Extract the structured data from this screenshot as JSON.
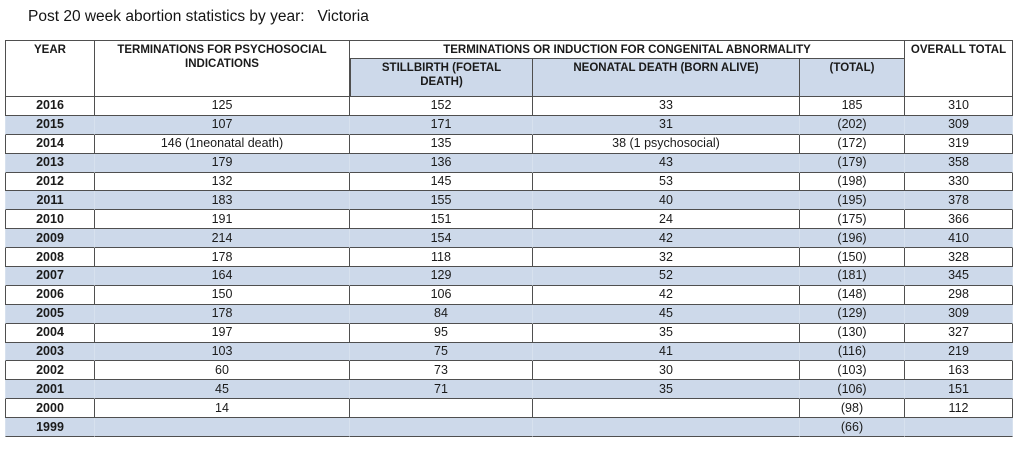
{
  "title": "Post 20 week abortion statistics by year:   Victoria",
  "table": {
    "headers": {
      "year": "YEAR",
      "psychosocial": "TERMINATIONS FOR PSYCHOSOCIAL INDICATIONS",
      "congenital_group": "TERMINATIONS OR INDUCTION FOR CONGENITAL ABNORMALITY",
      "stillbirth": "STILLBIRTH (FOETAL DEATH)",
      "neonatal": "NEONATAL DEATH (BORN ALIVE)",
      "total": "(TOTAL)",
      "overall": "OVERALL TOTAL"
    },
    "colors": {
      "stripe": "#cdd9ea",
      "border": "#4f4f4f",
      "text": "#1a1a1a"
    },
    "rows": [
      {
        "year": "2016",
        "psychosocial": "125",
        "stillbirth": "152",
        "neonatal": "33",
        "total": "185",
        "overall": "310"
      },
      {
        "year": "2015",
        "psychosocial": "107",
        "stillbirth": "171",
        "neonatal": "31",
        "total": "(202)",
        "overall": "309"
      },
      {
        "year": "2014",
        "psychosocial": "146 (1neonatal death)",
        "stillbirth": "135",
        "neonatal": "38 (1 psychosocial)",
        "total": "(172)",
        "overall": "319"
      },
      {
        "year": "2013",
        "psychosocial": "179",
        "stillbirth": "136",
        "neonatal": "43",
        "total": "(179)",
        "overall": "358"
      },
      {
        "year": "2012",
        "psychosocial": "132",
        "stillbirth": "145",
        "neonatal": "53",
        "total": "(198)",
        "overall": "330"
      },
      {
        "year": "2011",
        "psychosocial": "183",
        "stillbirth": "155",
        "neonatal": "40",
        "total": "(195)",
        "overall": "378"
      },
      {
        "year": "2010",
        "psychosocial": "191",
        "stillbirth": "151",
        "neonatal": "24",
        "total": "(175)",
        "overall": "366"
      },
      {
        "year": "2009",
        "psychosocial": "214",
        "stillbirth": "154",
        "neonatal": "42",
        "total": "(196)",
        "overall": "410"
      },
      {
        "year": "2008",
        "psychosocial": "178",
        "stillbirth": "118",
        "neonatal": "32",
        "total": "(150)",
        "overall": "328"
      },
      {
        "year": "2007",
        "psychosocial": "164",
        "stillbirth": "129",
        "neonatal": "52",
        "total": "(181)",
        "overall": "345"
      },
      {
        "year": "2006",
        "psychosocial": "150",
        "stillbirth": "106",
        "neonatal": "42",
        "total": "(148)",
        "overall": "298"
      },
      {
        "year": "2005",
        "psychosocial": "178",
        "stillbirth": "84",
        "neonatal": "45",
        "total": "(129)",
        "overall": "309"
      },
      {
        "year": "2004",
        "psychosocial": "197",
        "stillbirth": "95",
        "neonatal": "35",
        "total": "(130)",
        "overall": "327"
      },
      {
        "year": "2003",
        "psychosocial": "103",
        "stillbirth": "75",
        "neonatal": "41",
        "total": "(116)",
        "overall": "219"
      },
      {
        "year": "2002",
        "psychosocial": "60",
        "stillbirth": "73",
        "neonatal": "30",
        "total": "(103)",
        "overall": "163"
      },
      {
        "year": "2001",
        "psychosocial": "45",
        "stillbirth": "71",
        "neonatal": "35",
        "total": "(106)",
        "overall": "151"
      },
      {
        "year": "2000",
        "psychosocial": "14",
        "stillbirth": "",
        "neonatal": "",
        "total": "(98)",
        "overall": "112"
      },
      {
        "year": "1999",
        "psychosocial": "",
        "stillbirth": "",
        "neonatal": "",
        "total": "(66)",
        "overall": ""
      }
    ]
  }
}
